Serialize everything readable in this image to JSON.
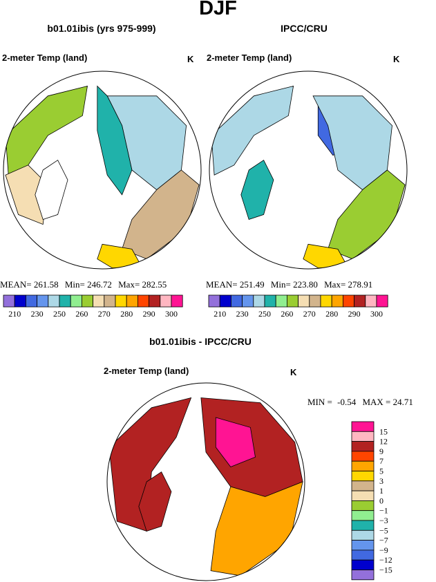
{
  "page_title": "DJF",
  "colors": {
    "palette": [
      "#9370db",
      "#0000cd",
      "#4169e1",
      "#6495ed",
      "#add8e6",
      "#20b2aa",
      "#9acd32",
      "#9acd32",
      "#f5deb3",
      "#d2b48c",
      "#ffd700",
      "#ffa500",
      "#ff4500",
      "#b22222",
      "#ffb6c1",
      "#ff1493"
    ],
    "outline": "#000000",
    "land_none": "#ffffff"
  },
  "chart_data": [
    {
      "type": "heatmap",
      "projection": "north-polar-stereographic",
      "title": "b01.01ibis (yrs 975-999)",
      "variable_label": "2-meter Temp (land)",
      "units": "K",
      "stats": {
        "mean_label": "MEAN=",
        "mean": "261.58",
        "min_label": "Min=",
        "min": "246.72",
        "max_label": "Max=",
        "max": "282.55"
      },
      "colorbar": {
        "orientation": "horizontal",
        "colors": [
          "#9370db",
          "#0000cd",
          "#4169e1",
          "#6495ed",
          "#add8e6",
          "#20b2aa",
          "#90ee90",
          "#9acd32",
          "#f5deb3",
          "#d2b48c",
          "#ffd700",
          "#ffa500",
          "#ff4500",
          "#b22222",
          "#ffb6c1",
          "#ff1493"
        ],
        "tick_labels": [
          "210",
          "230",
          "250",
          "260",
          "270",
          "280",
          "290",
          "300"
        ]
      },
      "regions": [
        {
          "name": "n-america-west",
          "fill": "#9acd32"
        },
        {
          "name": "n-america-south",
          "fill": "#f5deb3"
        },
        {
          "name": "eurasia-interior",
          "fill": "#add8e6"
        },
        {
          "name": "eurasia-teal",
          "fill": "#20b2aa"
        },
        {
          "name": "eurasia-south",
          "fill": "#d2b48c"
        },
        {
          "name": "greenland",
          "fill": "#ffffff"
        },
        {
          "name": "europe",
          "fill": "#ffd700"
        }
      ]
    },
    {
      "type": "heatmap",
      "projection": "north-polar-stereographic",
      "title": "IPCC/CRU",
      "variable_label": "2-meter Temp (land)",
      "units": "K",
      "stats": {
        "mean_label": "MEAN=",
        "mean": "251.49",
        "min_label": "Min=",
        "min": "223.80",
        "max_label": "Max=",
        "max": "278.91"
      },
      "colorbar": {
        "orientation": "horizontal",
        "colors": [
          "#9370db",
          "#0000cd",
          "#4169e1",
          "#6495ed",
          "#add8e6",
          "#20b2aa",
          "#90ee90",
          "#9acd32",
          "#f5deb3",
          "#d2b48c",
          "#ffd700",
          "#ffa500",
          "#ff4500",
          "#b22222",
          "#ffb6c1",
          "#ff1493"
        ],
        "tick_labels": [
          "210",
          "230",
          "250",
          "260",
          "270",
          "280",
          "290",
          "300"
        ]
      },
      "regions": [
        {
          "name": "n-america-west",
          "fill": "#add8e6"
        },
        {
          "name": "siberia",
          "fill": "#4169e1"
        },
        {
          "name": "eurasia-interior",
          "fill": "#add8e6"
        },
        {
          "name": "eurasia-south",
          "fill": "#9acd32"
        },
        {
          "name": "greenland",
          "fill": "#20b2aa"
        },
        {
          "name": "europe",
          "fill": "#ffd700"
        }
      ]
    },
    {
      "type": "heatmap",
      "projection": "north-polar-stereographic",
      "title": "b01.01ibis - IPCC/CRU",
      "variable_label": "2-meter Temp (land)",
      "units": "K",
      "stats": {
        "min_label": "MIN =",
        "min": "-0.54",
        "max_label": "MAX =",
        "max": "24.71"
      },
      "colorbar": {
        "orientation": "vertical",
        "colors": [
          "#ff1493",
          "#ffb6c1",
          "#b22222",
          "#ff4500",
          "#ffa500",
          "#ffd700",
          "#d2b48c",
          "#f5deb3",
          "#9acd32",
          "#90ee90",
          "#20b2aa",
          "#add8e6",
          "#6495ed",
          "#4169e1",
          "#0000cd",
          "#9370db"
        ],
        "tick_labels": [
          "15",
          "12",
          "9",
          "7",
          "5",
          "3",
          "1",
          "0",
          "−1",
          "−3",
          "−5",
          "−7",
          "−9",
          "−12",
          "−15"
        ]
      },
      "regions": [
        {
          "name": "n-america",
          "fill": "#b22222"
        },
        {
          "name": "eurasia",
          "fill": "#b22222"
        },
        {
          "name": "siberia",
          "fill": "#ff1493"
        },
        {
          "name": "europe-asia-south",
          "fill": "#ffa500"
        },
        {
          "name": "greenland",
          "fill": "#b22222"
        }
      ]
    }
  ]
}
